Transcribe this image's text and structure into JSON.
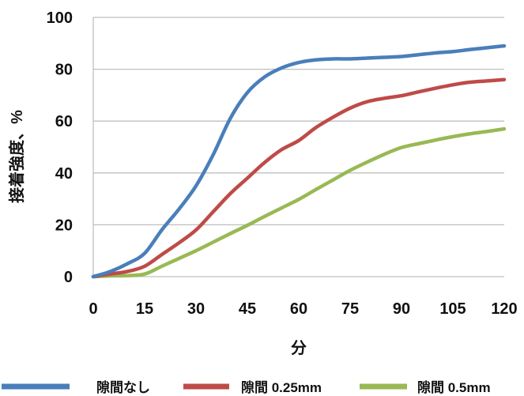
{
  "chart_data": {
    "type": "line",
    "xlabel": "分",
    "ylabel": "接着強度、%",
    "xlim": [
      0,
      120
    ],
    "ylim": [
      0,
      100
    ],
    "x_ticks": [
      0,
      15,
      30,
      45,
      60,
      75,
      90,
      105,
      120
    ],
    "y_ticks": [
      0,
      20,
      40,
      60,
      80,
      100
    ],
    "grid": "horizontal",
    "legend_position": "bottom",
    "x": [
      0,
      5,
      10,
      15,
      20,
      25,
      30,
      35,
      40,
      45,
      50,
      55,
      60,
      65,
      70,
      75,
      80,
      85,
      90,
      95,
      100,
      105,
      110,
      115,
      120
    ],
    "series": [
      {
        "name": "隙間なし",
        "color": "#4A7EBB",
        "values": [
          0,
          2,
          5,
          9,
          18,
          26,
          35,
          47,
          61,
          71,
          77,
          80.5,
          82.6,
          83.6,
          84,
          84,
          84.3,
          84.6,
          84.9,
          85.6,
          86.3,
          86.8,
          87.6,
          88.3,
          89
        ]
      },
      {
        "name": "隙間 0.25mm",
        "color": "#BE4B48",
        "values": [
          0,
          1,
          2,
          4,
          8.5,
          13,
          18,
          25,
          32,
          38,
          44,
          49,
          52.5,
          57.5,
          61.5,
          65,
          67.5,
          68.8,
          69.8,
          71.3,
          72.7,
          74,
          75,
          75.5,
          76
        ]
      },
      {
        "name": "隙間 0.5mm",
        "color": "#98B954",
        "values": [
          0,
          0.3,
          0.4,
          1,
          4,
          7,
          10,
          13.3,
          16.6,
          19.8,
          23.2,
          26.5,
          29.8,
          33.6,
          37.3,
          41,
          44.2,
          47.2,
          49.8,
          51.3,
          52.7,
          54,
          55.1,
          56,
          57
        ]
      }
    ]
  }
}
